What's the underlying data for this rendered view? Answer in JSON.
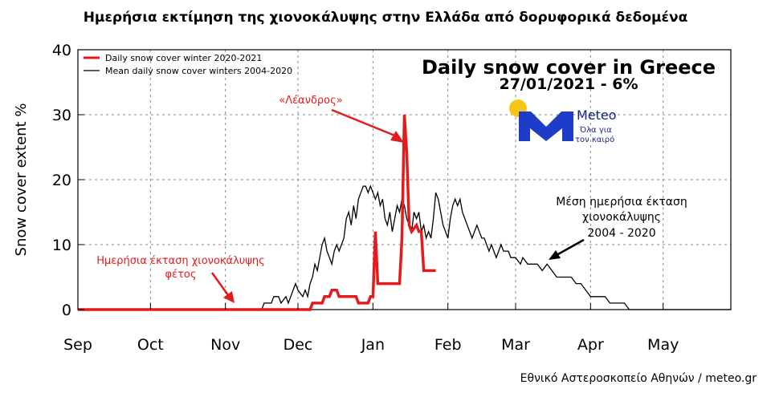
{
  "header": {
    "title": "Ημερήσια εκτίμηση της χιονοκάλυψης στην Ελλάδα από δορυφορικά δεδομένα"
  },
  "credit": "Εθνικό Αστεροσκοπείο Αθηνών / meteo.gr",
  "logo": {
    "name": "Meteo",
    "tagline_line1": "Όλα για",
    "tagline_line2": "τον καιρό",
    "sun_color": "#f5c518",
    "mark_color": "#1e3cc8"
  },
  "colors": {
    "current": "#e41a1c",
    "mean": "#000000",
    "grid": "#888888"
  },
  "chart_data": {
    "type": "line",
    "title": "Daily snow cover in Greece",
    "subtitle": "27/01/2021 - 6%",
    "ylabel": "Snow cover extent %",
    "xlabel": "",
    "ylim": [
      0,
      40
    ],
    "yticks": [
      0,
      10,
      20,
      30,
      40
    ],
    "xlim": [
      0,
      270
    ],
    "xticks": [
      {
        "day": 0,
        "label": "Sep"
      },
      {
        "day": 30,
        "label": "Oct"
      },
      {
        "day": 61,
        "label": "Nov"
      },
      {
        "day": 91,
        "label": "Dec"
      },
      {
        "day": 122,
        "label": "Jan"
      },
      {
        "day": 153,
        "label": "Feb"
      },
      {
        "day": 181,
        "label": "Mar"
      },
      {
        "day": 212,
        "label": "Apr"
      },
      {
        "day": 242,
        "label": "May"
      }
    ],
    "grid": true,
    "legend_position": "top-left",
    "series": [
      {
        "name": "Daily snow cover winter 2020-2021",
        "color": "#e41a1c",
        "x": [
          0,
          96,
          97,
          101,
          102,
          104,
          105,
          107,
          108,
          111,
          112,
          115,
          116,
          118,
          119,
          120,
          121,
          122,
          123,
          124,
          125,
          133,
          134,
          135,
          136,
          137,
          138,
          140,
          141,
          142,
          143,
          144,
          145,
          146,
          147,
          148
        ],
        "y": [
          0,
          0,
          1,
          1,
          2,
          2,
          3,
          3,
          2,
          2,
          2,
          2,
          1,
          1,
          1,
          1,
          2,
          2,
          12,
          4,
          4,
          4,
          11,
          30,
          24,
          13,
          12,
          13,
          12,
          12,
          6,
          6,
          6,
          6,
          6,
          6
        ]
      },
      {
        "name": "Mean daily snow cover winters 2004-2020",
        "color": "#000000",
        "x": [
          0,
          76,
          77,
          80,
          81,
          83,
          84,
          86,
          87,
          88,
          89,
          90,
          91,
          93,
          94,
          95,
          96,
          97,
          98,
          99,
          100,
          101,
          102,
          103,
          104,
          105,
          106,
          107,
          108,
          109,
          110,
          111,
          112,
          113,
          114,
          115,
          116,
          117,
          118,
          119,
          120,
          121,
          122,
          123,
          124,
          125,
          126,
          127,
          128,
          129,
          130,
          131,
          132,
          133,
          134,
          135,
          136,
          137,
          138,
          139,
          140,
          141,
          142,
          143,
          144,
          145,
          146,
          147,
          148,
          149,
          150,
          151,
          152,
          153,
          154,
          155,
          156,
          157,
          158,
          159,
          160,
          161,
          162,
          163,
          164,
          165,
          166,
          167,
          168,
          169,
          170,
          171,
          172,
          173,
          174,
          175,
          176,
          177,
          178,
          179,
          180,
          181,
          183,
          184,
          186,
          188,
          190,
          192,
          194,
          196,
          198,
          200,
          202,
          204,
          206,
          208,
          210,
          212,
          214,
          216,
          218,
          220,
          222,
          224,
          226,
          228,
          230,
          270
        ],
        "y": [
          0,
          0,
          1,
          1,
          2,
          2,
          1,
          2,
          1,
          2,
          3,
          4,
          3,
          2,
          3,
          2,
          4,
          5,
          7,
          6,
          8,
          10,
          11,
          9,
          8,
          7,
          9,
          10,
          9,
          10,
          11,
          14,
          15,
          13,
          16,
          14,
          17,
          18,
          19,
          19,
          18,
          19,
          18,
          17,
          18,
          16,
          17,
          14,
          13,
          15,
          12,
          14,
          16,
          15,
          17,
          16,
          14,
          13,
          12,
          15,
          14,
          15,
          12,
          13,
          11,
          12,
          11,
          14,
          18,
          17,
          15,
          13,
          12,
          11,
          14,
          16,
          17,
          16,
          17,
          15,
          14,
          13,
          12,
          11,
          12,
          13,
          12,
          11,
          11,
          10,
          9,
          10,
          9,
          8,
          9,
          10,
          9,
          9,
          9,
          8,
          8,
          8,
          7,
          8,
          7,
          7,
          7,
          6,
          7,
          6,
          5,
          5,
          5,
          5,
          4,
          4,
          3,
          2,
          2,
          2,
          2,
          1,
          1,
          1,
          1,
          0,
          0,
          0
        ]
      }
    ],
    "annotations": [
      {
        "text": "«Λέανδρος»",
        "color": "#e41a1c",
        "target_day": 135,
        "target_value": 26
      },
      {
        "text": "Ημερήσια έκταση χιονοκάλυψης",
        "text2": "φέτος",
        "color": "#e41a1c",
        "target_day": 66,
        "target_value": 1
      },
      {
        "text": "Μέση ημερήσια έκταση",
        "text2": "χιονοκάλυψης",
        "text3": "2004 - 2020",
        "color": "#000000",
        "target_day": 195,
        "target_value": 7
      }
    ]
  }
}
